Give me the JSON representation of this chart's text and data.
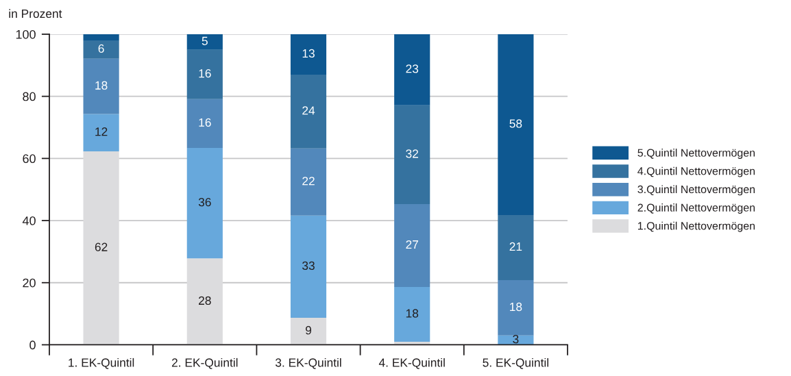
{
  "chart_data": {
    "type": "bar",
    "stacked": true,
    "ylabel": "in Prozent",
    "categories": [
      "1. EK-Quintil",
      "2. EK-Quintil",
      "3. EK-Quintil",
      "4. EK-Quintil",
      "5. EK-Quintil"
    ],
    "series": [
      {
        "name": "1.Quintil Nettovermögen",
        "color": "#dcdcde",
        "values": [
          62.3,
          27.8,
          8.7,
          1.0,
          null
        ],
        "value_labels": [
          "62",
          "28",
          "9",
          null,
          null
        ]
      },
      {
        "name": "2.Quintil Nettovermögen",
        "color": "#67a8dc",
        "values": [
          12.0,
          35.6,
          32.9,
          17.6,
          3.0
        ],
        "value_labels": [
          "12",
          "36",
          "33",
          "18",
          "3"
        ]
      },
      {
        "name": "3.Quintil Nettovermögen",
        "color": "#5288bb",
        "values": [
          17.8,
          15.7,
          21.6,
          26.7,
          17.8
        ],
        "value_labels": [
          "18",
          "16",
          "22",
          "27",
          "18"
        ]
      },
      {
        "name": "4.Quintil Nettovermögen",
        "color": "#35729f",
        "values": [
          5.9,
          15.9,
          23.8,
          31.8,
          21.0
        ],
        "value_labels": [
          "6",
          "16",
          "24",
          "32",
          "21"
        ]
      },
      {
        "name": "5.Quintil Nettovermögen",
        "color": "#0e5891",
        "values": [
          2.0,
          5.0,
          13.0,
          22.9,
          58.2
        ],
        "value_labels": [
          null,
          "5",
          "13",
          "23",
          "58"
        ]
      }
    ],
    "ylim": [
      0,
      100
    ],
    "yticks": [
      0,
      20,
      40,
      60,
      80,
      100
    ],
    "grid": "y",
    "legend": "right"
  }
}
